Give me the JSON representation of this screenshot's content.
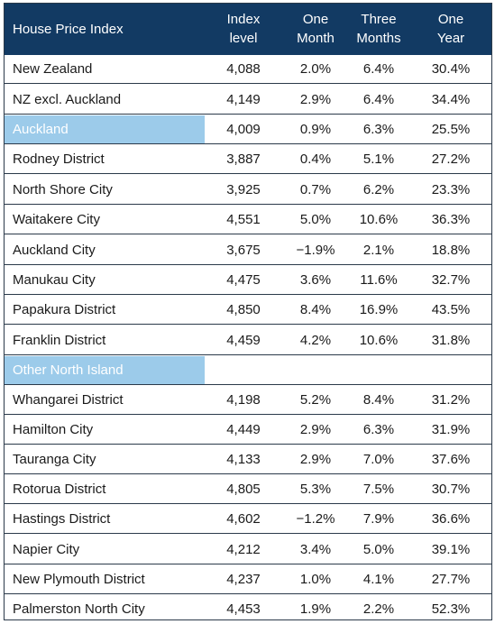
{
  "headers": {
    "name": "House Price Index",
    "index_1": "Index",
    "index_2": "level",
    "month_1": "One",
    "month_2": "Month",
    "three_1": "Three",
    "three_2": "Months",
    "year_1": "One",
    "year_2": "Year"
  },
  "rows": [
    {
      "name": "New Zealand",
      "index": "4,088",
      "one_month": "2.0%",
      "three_months": "6.4%",
      "one_year": "30.4%"
    },
    {
      "name": "NZ excl. Auckland",
      "index": "4,149",
      "one_month": "2.9%",
      "three_months": "6.4%",
      "one_year": "34.4%"
    },
    {
      "name": "Auckland",
      "index": "4,009",
      "one_month": "0.9%",
      "three_months": "6.3%",
      "one_year": "25.5%"
    },
    {
      "name": "Rodney District",
      "index": "3,887",
      "one_month": "0.4%",
      "three_months": "5.1%",
      "one_year": "27.2%"
    },
    {
      "name": "North Shore City",
      "index": "3,925",
      "one_month": "0.7%",
      "three_months": "6.2%",
      "one_year": "23.3%"
    },
    {
      "name": "Waitakere City",
      "index": "4,551",
      "one_month": "5.0%",
      "three_months": "10.6%",
      "one_year": "36.3%"
    },
    {
      "name": "Auckland City",
      "index": "3,675",
      "one_month": "−1.9%",
      "three_months": "2.1%",
      "one_year": "18.8%"
    },
    {
      "name": "Manukau City",
      "index": "4,475",
      "one_month": "3.6%",
      "three_months": "11.6%",
      "one_year": "32.7%"
    },
    {
      "name": "Papakura District",
      "index": "4,850",
      "one_month": "8.4%",
      "three_months": "16.9%",
      "one_year": "43.5%"
    },
    {
      "name": "Franklin District",
      "index": "4,459",
      "one_month": "4.2%",
      "three_months": "10.6%",
      "one_year": "31.8%"
    },
    {
      "name": "Other North Island",
      "index": "",
      "one_month": "",
      "three_months": "",
      "one_year": ""
    },
    {
      "name": "Whangarei District",
      "index": "4,198",
      "one_month": "5.2%",
      "three_months": "8.4%",
      "one_year": "31.2%"
    },
    {
      "name": "Hamilton City",
      "index": "4,449",
      "one_month": "2.9%",
      "three_months": "6.3%",
      "one_year": "31.9%"
    },
    {
      "name": "Tauranga City",
      "index": "4,133",
      "one_month": "2.9%",
      "three_months": "7.0%",
      "one_year": "37.6%"
    },
    {
      "name": "Rotorua District",
      "index": "4,805",
      "one_month": "5.3%",
      "three_months": "7.5%",
      "one_year": "30.7%"
    },
    {
      "name": "Hastings District",
      "index": "4,602",
      "one_month": "−1.2%",
      "three_months": "7.9%",
      "one_year": "36.6%"
    },
    {
      "name": "Napier City",
      "index": "4,212",
      "one_month": "3.4%",
      "three_months": "5.0%",
      "one_year": "39.1%"
    },
    {
      "name": "New Plymouth District",
      "index": "4,237",
      "one_month": "1.0%",
      "three_months": "4.1%",
      "one_year": "27.7%"
    },
    {
      "name": "Palmerston North City",
      "index": "4,453",
      "one_month": "1.9%",
      "three_months": "2.2%",
      "one_year": "52.3%"
    }
  ],
  "colors": {
    "header_bg": "#123a63",
    "section_highlight": "#9ccbea"
  }
}
